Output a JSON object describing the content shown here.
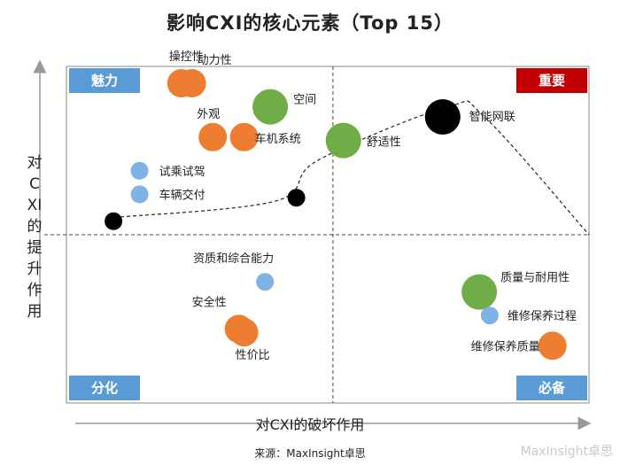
{
  "chart_data": {
    "type": "scatter",
    "title": "影响CXI的核心元素（Top 15）",
    "xlabel": "对CXI的破坏作用",
    "ylabel": "对CXI的提升作用",
    "xlim": [
      0,
      100
    ],
    "ylim": [
      0,
      100
    ],
    "divider_x": 51,
    "divider_y": 50,
    "quadrants": [
      {
        "label": "魅力",
        "position": "top-left",
        "color": "#5b9bd5"
      },
      {
        "label": "重要",
        "position": "top-right",
        "color": "#c00000"
      },
      {
        "label": "分化",
        "position": "bottom-left",
        "color": "#5b9bd5"
      },
      {
        "label": "必备",
        "position": "bottom-right",
        "color": "#5b9bd5"
      }
    ],
    "trend_curve": [
      [
        8,
        55
      ],
      [
        40,
        60
      ],
      [
        48,
        72
      ],
      [
        73,
        88
      ],
      [
        80,
        85
      ],
      [
        100,
        50
      ]
    ],
    "points": [
      {
        "label": "操控性",
        "x": 22,
        "y": 95,
        "size": "medium",
        "color": "#ed7d31"
      },
      {
        "label": "动力性",
        "x": 24,
        "y": 95,
        "size": "medium",
        "color": "#ed7d31"
      },
      {
        "label": "空间",
        "x": 39,
        "y": 88,
        "size": "large",
        "color": "#70ad47"
      },
      {
        "label": "外观",
        "x": 28,
        "y": 79,
        "size": "medium",
        "color": "#ed7d31"
      },
      {
        "label": "车机系统",
        "x": 34,
        "y": 79,
        "size": "medium",
        "color": "#ed7d31"
      },
      {
        "label": "舒适性",
        "x": 53,
        "y": 78,
        "size": "large",
        "color": "#70ad47"
      },
      {
        "label": "智能网联",
        "x": 72,
        "y": 85,
        "size": "large",
        "color": "#000000"
      },
      {
        "label": "试乘试驾",
        "x": 14,
        "y": 69,
        "size": "small",
        "color": "#7fb2e5"
      },
      {
        "label": "车辆交付",
        "x": 14,
        "y": 62,
        "size": "small",
        "color": "#7fb2e5"
      },
      {
        "label": "",
        "x": 9,
        "y": 54,
        "size": "small",
        "color": "#000000"
      },
      {
        "label": "",
        "x": 44,
        "y": 61,
        "size": "small",
        "color": "#000000"
      },
      {
        "label": "资质和综合能力",
        "x": 38,
        "y": 36,
        "size": "small",
        "color": "#7fb2e5"
      },
      {
        "label": "安全性",
        "x": 33,
        "y": 22,
        "size": "medium",
        "color": "#ed7d31"
      },
      {
        "label": "性价比",
        "x": 34,
        "y": 21,
        "size": "medium",
        "color": "#ed7d31"
      },
      {
        "label": "质量与耐用性",
        "x": 79,
        "y": 33,
        "size": "large",
        "color": "#70ad47"
      },
      {
        "label": "维修保养过程",
        "x": 81,
        "y": 26,
        "size": "small",
        "color": "#7fb2e5"
      },
      {
        "label": "维修保养质量",
        "x": 93,
        "y": 17,
        "size": "medium",
        "color": "#ed7d31"
      }
    ]
  },
  "source": "来源：MaxInsight卓思",
  "watermark": "MaxInsight卓思"
}
